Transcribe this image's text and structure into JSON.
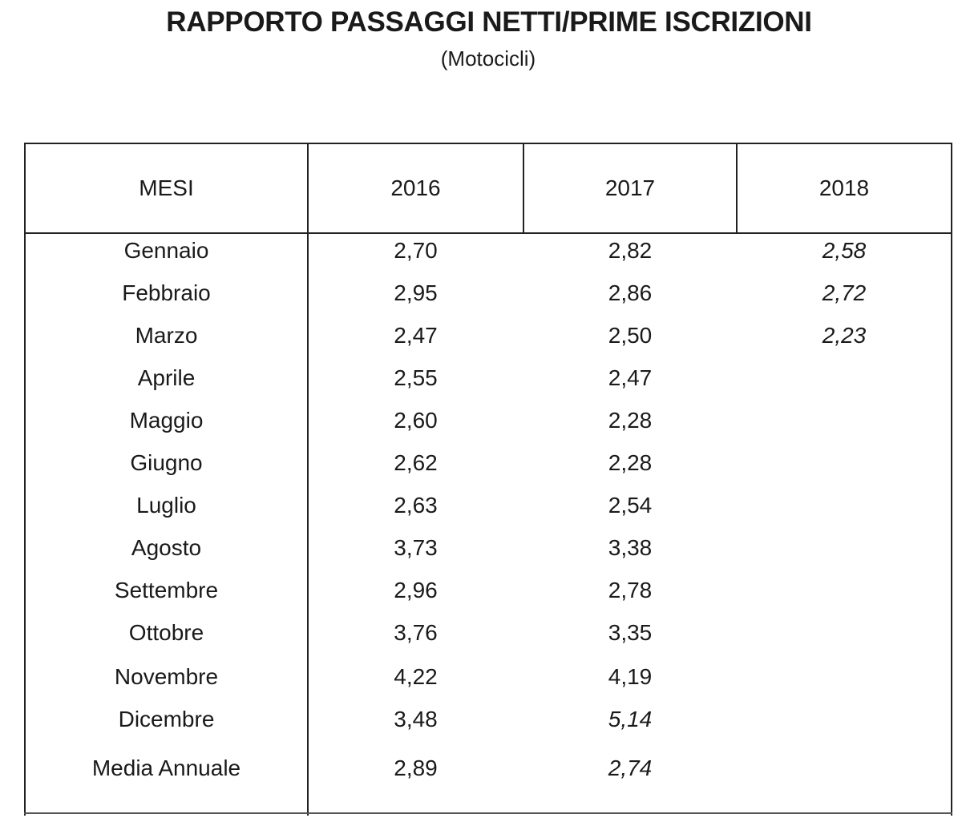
{
  "title": "RAPPORTO PASSAGGI NETTI/PRIME ISCRIZIONI",
  "subtitle": "(Motocicli)",
  "columns": [
    "MESI",
    "2016",
    "2017",
    "2018"
  ],
  "rows": [
    {
      "month": "Gennaio",
      "y2016": "2,70",
      "y2017": "2,82",
      "y2018": "2,58"
    },
    {
      "month": "Febbraio",
      "y2016": "2,95",
      "y2017": "2,86",
      "y2018": "2,72"
    },
    {
      "month": "Marzo",
      "y2016": "2,47",
      "y2017": "2,50",
      "y2018": "2,23"
    },
    {
      "month": "Aprile",
      "y2016": "2,55",
      "y2017": "2,47",
      "y2018": ""
    },
    {
      "month": "Maggio",
      "y2016": "2,60",
      "y2017": "2,28",
      "y2018": ""
    },
    {
      "month": "Giugno",
      "y2016": "2,62",
      "y2017": "2,28",
      "y2018": ""
    },
    {
      "month": "Luglio",
      "y2016": "2,63",
      "y2017": "2,54",
      "y2018": ""
    },
    {
      "month": "Agosto",
      "y2016": "3,73",
      "y2017": "3,38",
      "y2018": ""
    },
    {
      "month": "Settembre",
      "y2016": "2,96",
      "y2017": "2,78",
      "y2018": ""
    },
    {
      "month": "Ottobre",
      "y2016": "3,76",
      "y2017": "3,35",
      "y2018": ""
    },
    {
      "month": "Novembre",
      "y2016": "4,22",
      "y2017": "4,19",
      "y2018": ""
    },
    {
      "month": "Dicembre",
      "y2016": "3,48",
      "y2017": "5,14",
      "y2018": ""
    },
    {
      "month": "Media Annuale",
      "y2016": "2,89",
      "y2017": "2,74",
      "y2018": ""
    }
  ]
}
